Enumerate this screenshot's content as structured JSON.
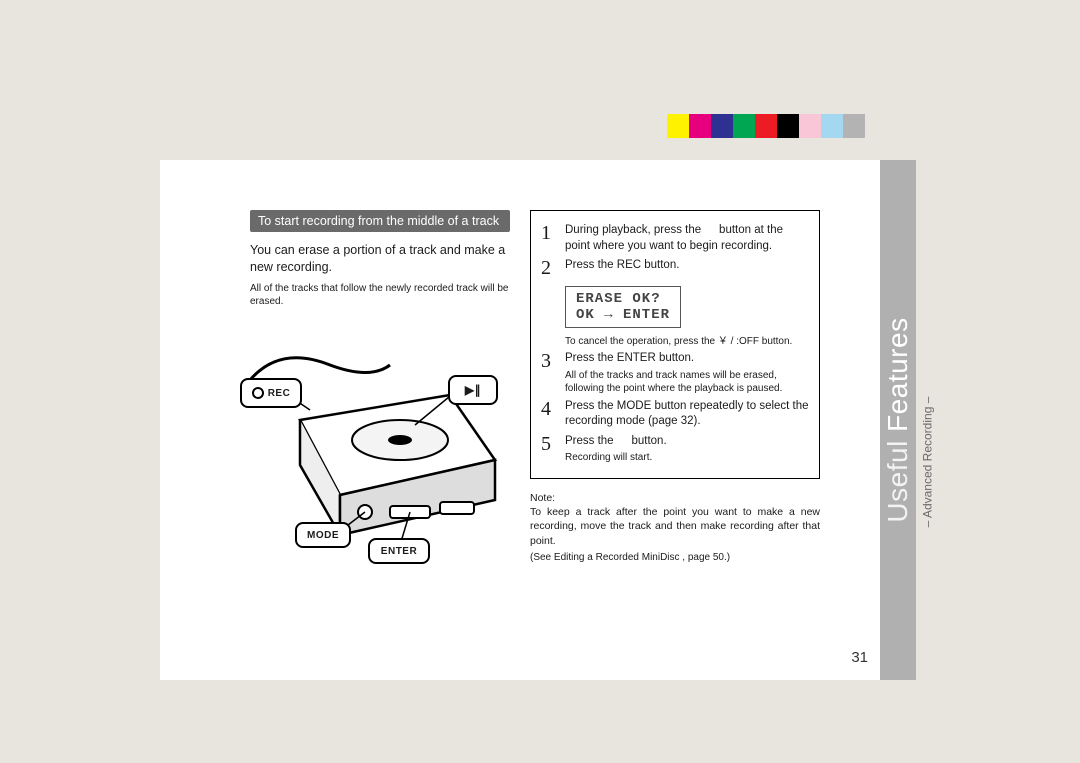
{
  "colorbar": {
    "swatches": [
      "#fff200",
      "#e6007e",
      "#2e3192",
      "#00a651",
      "#ed1c24",
      "#000000",
      "#f9c6d7",
      "#a4d8f0",
      "#b3b3b3"
    ]
  },
  "sidetab": {
    "title_thin": "Useful",
    "title_bold": "Features",
    "subtitle_pre": "–",
    "subtitle": "Advanced Recording",
    "subtitle_post": "–",
    "bg": "#b0b0b0"
  },
  "left": {
    "header": "To start recording from the middle of a track",
    "intro": "You can erase a portion of a track and make a new recording.",
    "fine": "All of the tracks that follow the newly recorded track will be erased."
  },
  "device": {
    "btn_rec": "REC",
    "btn_play": "▶∥",
    "btn_mode": "MODE",
    "btn_enter": "ENTER"
  },
  "steps": {
    "s1": {
      "n": "1",
      "main_a": "During playback, press the ",
      "main_b": " button at the point where you want to begin recording."
    },
    "s2": {
      "n": "2",
      "main": "Press the REC button.",
      "cancel": "To cancel the operation, press the ￥ / :OFF button."
    },
    "s3": {
      "n": "3",
      "main": "Press the ENTER button.",
      "sub": "All of the tracks and track names will be erased, following the point where the playback is paused."
    },
    "s4": {
      "n": "4",
      "main": "Press the MODE button repeatedly to select the recording mode (page 32)."
    },
    "s5": {
      "n": "5",
      "main_a": "Press the ",
      "main_b": " button.",
      "sub": "Recording will start."
    }
  },
  "lcd": {
    "l1": "ERASE OK?",
    "l2": "OK → ENTER"
  },
  "note": {
    "label": "Note:",
    "body": "To keep a track after the point you want to make a new recording, move the track and then make recording after that point.",
    "see": "(See  Editing a Recorded MiniDisc , page 50.)"
  },
  "page_number": "31"
}
